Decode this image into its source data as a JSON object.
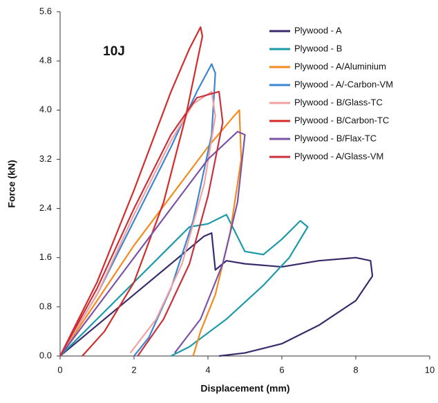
{
  "chart_data": {
    "type": "line",
    "annotation": "10J",
    "x_label": "Displacement (mm)",
    "y_label": "Force (kN)",
    "xlim": [
      0,
      10
    ],
    "ylim": [
      0,
      5.6
    ],
    "xticks": [
      0,
      2,
      4,
      6,
      8,
      10
    ],
    "yticks": [
      {
        "value": 0,
        "label": "0.0"
      },
      0.8,
      1.6,
      2.4,
      3.2,
      {
        "value": 4,
        "label": "4.0"
      },
      4.8,
      5.6
    ],
    "legend": "top-right",
    "series": [
      {
        "name": "Plywood - A",
        "color": "#3b2a6b",
        "x": [
          0,
          1,
          2,
          3,
          3.9,
          4.1,
          4.2,
          4.5,
          5,
          6,
          7,
          8,
          8.4,
          8.45,
          8,
          7,
          6,
          5,
          4.3
        ],
        "values": [
          0,
          0.5,
          1.0,
          1.5,
          1.95,
          2.0,
          1.4,
          1.55,
          1.5,
          1.45,
          1.55,
          1.6,
          1.55,
          1.3,
          0.9,
          0.5,
          0.2,
          0.05,
          0
        ]
      },
      {
        "name": "Plywood - B",
        "color": "#1a9aa8",
        "x": [
          0,
          1,
          2,
          3,
          3.5,
          4,
          4.5,
          5,
          5.5,
          6,
          6.5,
          6.7,
          6.2,
          5.5,
          4.5,
          3.5,
          3
        ],
        "values": [
          0,
          0.6,
          1.2,
          1.8,
          2.1,
          2.15,
          2.3,
          1.7,
          1.65,
          1.9,
          2.2,
          2.1,
          1.6,
          1.15,
          0.6,
          0.15,
          0
        ]
      },
      {
        "name": "Plywood - A/Aluminium",
        "color": "#f28a1e",
        "x": [
          0,
          1,
          2,
          3,
          4,
          4.7,
          4.85,
          4.9,
          4.6,
          4.2,
          3.8,
          3.6
        ],
        "values": [
          0,
          0.9,
          1.8,
          2.6,
          3.4,
          3.9,
          4.0,
          3.2,
          2.0,
          1.0,
          0.4,
          0
        ]
      },
      {
        "name": "Plywood - A/-Carbon-VM",
        "color": "#3a86d4",
        "x": [
          0,
          1,
          2,
          3,
          3.7,
          4.1,
          4.2,
          4.1,
          3.6,
          3,
          2.4,
          2
        ],
        "values": [
          0,
          1.0,
          2.2,
          3.4,
          4.3,
          4.75,
          4.6,
          3.6,
          2.2,
          1.1,
          0.3,
          0
        ]
      },
      {
        "name": "Plywood - B/Glass-TC",
        "color": "#f2a0a0",
        "x": [
          0,
          1,
          2,
          3,
          3.6,
          4.1,
          4.2,
          3.9,
          3.3,
          2.6,
          1.9
        ],
        "values": [
          0,
          1.0,
          2.3,
          3.5,
          4.1,
          4.3,
          3.9,
          2.8,
          1.5,
          0.6,
          0.05
        ]
      },
      {
        "name": "Plywood - B/Carbon-TC",
        "color": "#d42a2a",
        "x": [
          0,
          1,
          2,
          3,
          3.5,
          3.8,
          3.85,
          3.4,
          2.8,
          2,
          1.2,
          0.6
        ],
        "values": [
          0,
          1.2,
          2.7,
          4.3,
          5.0,
          5.35,
          5.2,
          3.9,
          2.5,
          1.2,
          0.4,
          0
        ]
      },
      {
        "name": "Plywood - B/Flax-TC",
        "color": "#7b52a8",
        "x": [
          0,
          1,
          2,
          3,
          4,
          4.8,
          5,
          4.8,
          4.4,
          3.8,
          3.1
        ],
        "values": [
          0,
          0.8,
          1.6,
          2.4,
          3.2,
          3.65,
          3.6,
          2.5,
          1.5,
          0.6,
          0.05
        ]
      },
      {
        "name": "Plywood - A/Glass-VM",
        "color": "#c8303a",
        "x": [
          0,
          1,
          2,
          3,
          3.7,
          4.3,
          4.4,
          4,
          3.5,
          2.8,
          2.1
        ],
        "values": [
          0,
          1.1,
          2.4,
          3.6,
          4.2,
          4.3,
          3.8,
          2.6,
          1.5,
          0.6,
          0
        ]
      }
    ]
  }
}
